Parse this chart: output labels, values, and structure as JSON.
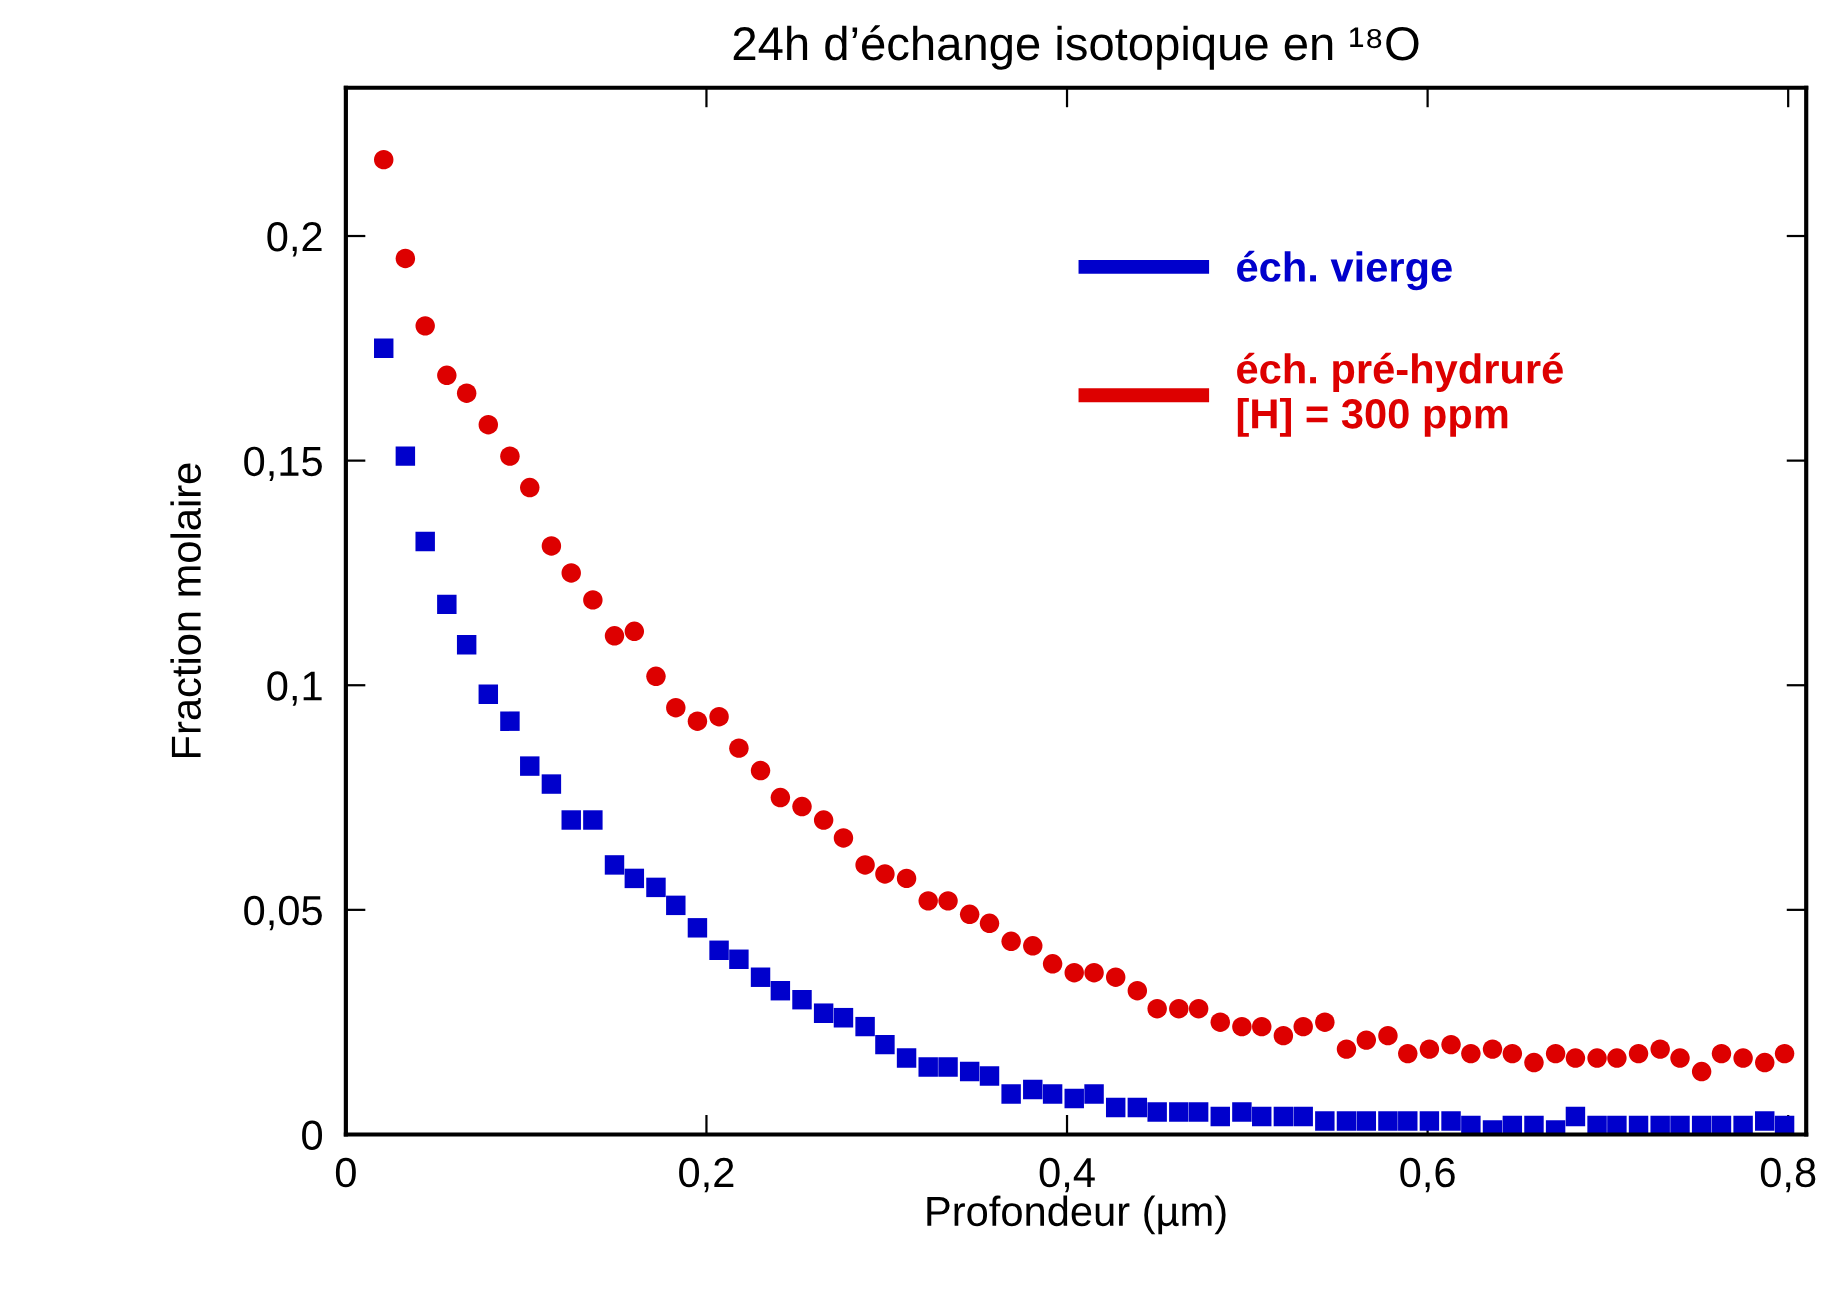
{
  "chart_data": {
    "type": "scatter",
    "title": "24h d’échange isotopique en ¹⁸O",
    "xlabel": "Profondeur (µm)",
    "ylabel": "Fraction molaire",
    "x": [
      0.021,
      0.033,
      0.044,
      0.056,
      0.067,
      0.079,
      0.091,
      0.102,
      0.114,
      0.125,
      0.137,
      0.149,
      0.16,
      0.172,
      0.183,
      0.195,
      0.207,
      0.218,
      0.23,
      0.241,
      0.253,
      0.265,
      0.276,
      0.288,
      0.299,
      0.311,
      0.323,
      0.334,
      0.346,
      0.357,
      0.369,
      0.381,
      0.392,
      0.404,
      0.415,
      0.427,
      0.439,
      0.45,
      0.462,
      0.473,
      0.485,
      0.497,
      0.508,
      0.52,
      0.531,
      0.543,
      0.555,
      0.566,
      0.578,
      0.589,
      0.601,
      0.613,
      0.624,
      0.636,
      0.647,
      0.659,
      0.671,
      0.682,
      0.694,
      0.705,
      0.717,
      0.729,
      0.74,
      0.752,
      0.763,
      0.775,
      0.787,
      0.798
    ],
    "series": [
      {
        "name": "éch. vierge",
        "color": "#0000cc",
        "marker": "square",
        "values": [
          0.175,
          0.151,
          0.132,
          0.118,
          0.109,
          0.098,
          0.092,
          0.082,
          0.078,
          0.07,
          0.07,
          0.06,
          0.057,
          0.055,
          0.051,
          0.046,
          0.041,
          0.039,
          0.035,
          0.032,
          0.03,
          0.027,
          0.026,
          0.024,
          0.02,
          0.017,
          0.015,
          0.015,
          0.014,
          0.013,
          0.009,
          0.01,
          0.009,
          0.008,
          0.009,
          0.006,
          0.006,
          0.005,
          0.005,
          0.005,
          0.004,
          0.005,
          0.004,
          0.004,
          0.004,
          0.003,
          0.003,
          0.003,
          0.003,
          0.003,
          0.003,
          0.003,
          0.002,
          0.001,
          0.002,
          0.002,
          0.001,
          0.004,
          0.002,
          0.002,
          0.002,
          0.002,
          0.002,
          0.002,
          0.002,
          0.002,
          0.003,
          0.002
        ]
      },
      {
        "name": "éch. pré-hydruré\n[H] = 300 ppm",
        "color": "#dd0000",
        "marker": "circle",
        "values": [
          0.217,
          0.195,
          0.18,
          0.169,
          0.165,
          0.158,
          0.151,
          0.144,
          0.131,
          0.125,
          0.119,
          0.111,
          0.112,
          0.102,
          0.095,
          0.092,
          0.093,
          0.086,
          0.081,
          0.075,
          0.073,
          0.07,
          0.066,
          0.06,
          0.058,
          0.057,
          0.052,
          0.052,
          0.049,
          0.047,
          0.043,
          0.042,
          0.038,
          0.036,
          0.036,
          0.035,
          0.032,
          0.028,
          0.028,
          0.028,
          0.025,
          0.024,
          0.024,
          0.022,
          0.024,
          0.025,
          0.019,
          0.021,
          0.022,
          0.018,
          0.019,
          0.02,
          0.018,
          0.019,
          0.018,
          0.016,
          0.018,
          0.017,
          0.017,
          0.017,
          0.018,
          0.019,
          0.017,
          0.014,
          0.018,
          0.017,
          0.016,
          0.018
        ]
      }
    ],
    "xlim": [
      0,
      0.81
    ],
    "ylim": [
      0,
      0.233
    ],
    "xticks": [
      0,
      {
        "value": 0.2,
        "label": "0,2"
      },
      {
        "value": 0.4,
        "label": "0,4"
      },
      {
        "value": 0.6,
        "label": "0,6"
      },
      {
        "value": 0.8,
        "label": "0,8"
      }
    ],
    "yticks": [
      0,
      {
        "value": 0.05,
        "label": "0,05"
      },
      {
        "value": 0.1,
        "label": "0,1"
      },
      {
        "value": 0.15,
        "label": "0,15"
      },
      {
        "value": 0.2,
        "label": "0,2"
      }
    ],
    "grid": false,
    "legend": "top right"
  }
}
